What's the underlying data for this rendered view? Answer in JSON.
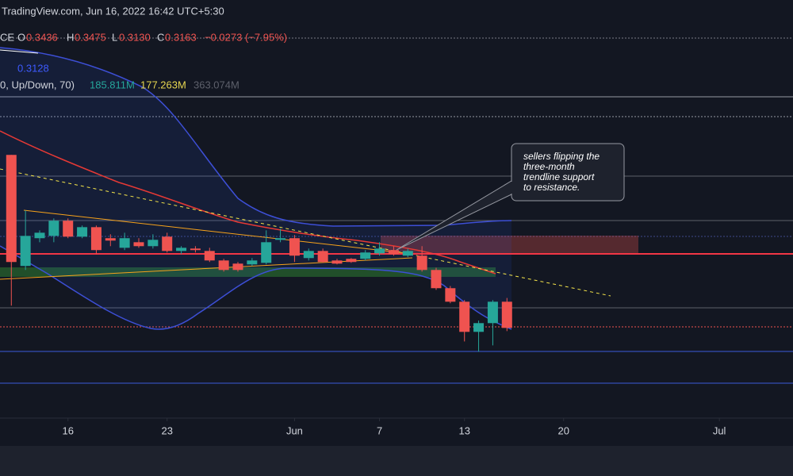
{
  "header": {
    "source": "TradingView.com, Jun 16, 2022 16:42 UTC+5:30",
    "symbol_suffix": "CE",
    "o_label": "O",
    "o_value": "0.3436",
    "h_label": "H",
    "h_value": "0.3475",
    "l_label": "L",
    "l_value": "0.3130",
    "c_label": "C",
    "c_value": "0.3163",
    "change": "−0.0273 (−7.95%)",
    "bb_value": "0.3128",
    "volume_label": "0, Up/Down, 70)",
    "volume_up": "185.811M",
    "volume_down": "177.263M",
    "volume_total": "363.074M"
  },
  "annotation": [
    "sellers flipping the",
    "three-month",
    "trendline support",
    "to resistance."
  ],
  "chart_data": {
    "type": "candlestick",
    "x": [
      -4,
      -3,
      -2,
      -1,
      0,
      1,
      2,
      3,
      4,
      5,
      6,
      7,
      8,
      9,
      10,
      11,
      12,
      13,
      14,
      15,
      16,
      17,
      18,
      19,
      20,
      21,
      22,
      23,
      24,
      25,
      26,
      27,
      28,
      29,
      30,
      31
    ],
    "open": [
      0.4966,
      0.3808,
      0.4098,
      0.4122,
      0.428,
      0.4114,
      0.4213,
      0.4098,
      0.3998,
      0.4056,
      0.4015,
      0.4114,
      0.3965,
      0.399,
      0.3965,
      0.3866,
      0.3833,
      0.3825,
      0.3841,
      0.4081,
      0.4098,
      0.3891,
      0.3965,
      0.3866,
      0.3883,
      0.3883,
      0.394,
      0.3974,
      0.3916,
      0.3916,
      0.3767,
      0.3577,
      0.3436,
      0.3122,
      0.3213,
      0.3436
    ],
    "high": [
      0.4966,
      0.4387,
      0.418,
      0.4304,
      0.4304,
      0.423,
      0.423,
      0.4139,
      0.4155,
      0.4098,
      0.4139,
      0.4155,
      0.4015,
      0.4015,
      0.3998,
      0.3883,
      0.385,
      0.3891,
      0.418,
      0.4197,
      0.4131,
      0.399,
      0.399,
      0.3883,
      0.3891,
      0.3974,
      0.4056,
      0.4015,
      0.399,
      0.4015,
      0.379,
      0.36,
      0.3453,
      0.324,
      0.3453,
      0.3475
    ],
    "low": [
      0.3395,
      0.3767,
      0.4056,
      0.4056,
      0.4098,
      0.4098,
      0.3932,
      0.4015,
      0.3974,
      0.3998,
      0.399,
      0.3949,
      0.3932,
      0.3949,
      0.385,
      0.375,
      0.375,
      0.3808,
      0.3825,
      0.4056,
      0.385,
      0.3866,
      0.3841,
      0.3825,
      0.3841,
      0.3866,
      0.3916,
      0.3916,
      0.39,
      0.375,
      0.356,
      0.342,
      0.3022,
      0.2915,
      0.2981,
      0.313
    ],
    "close": [
      0.385,
      0.4122,
      0.4155,
      0.428,
      0.4114,
      0.4213,
      0.3974,
      0.4073,
      0.4098,
      0.4015,
      0.4081,
      0.3965,
      0.3998,
      0.3974,
      0.3866,
      0.3767,
      0.3767,
      0.3866,
      0.4056,
      0.4098,
      0.3916,
      0.3965,
      0.385,
      0.3833,
      0.385,
      0.3949,
      0.399,
      0.3932,
      0.3965,
      0.3767,
      0.3577,
      0.3436,
      0.3122,
      0.3213,
      0.3436,
      0.3163
    ],
    "up_color": "#26a69a",
    "down_color": "#ef5350",
    "xlim": [
      -4.8,
      51.2
    ],
    "ylim": [
      0.224,
      0.658
    ],
    "xticks": [
      {
        "value": 0,
        "label": "16"
      },
      {
        "value": 7,
        "label": "23"
      },
      {
        "value": 16,
        "label": "Jun"
      },
      {
        "value": 22,
        "label": "7"
      },
      {
        "value": 28,
        "label": "13"
      },
      {
        "value": 35,
        "label": "20"
      },
      {
        "value": 46,
        "label": "Jul"
      }
    ]
  }
}
